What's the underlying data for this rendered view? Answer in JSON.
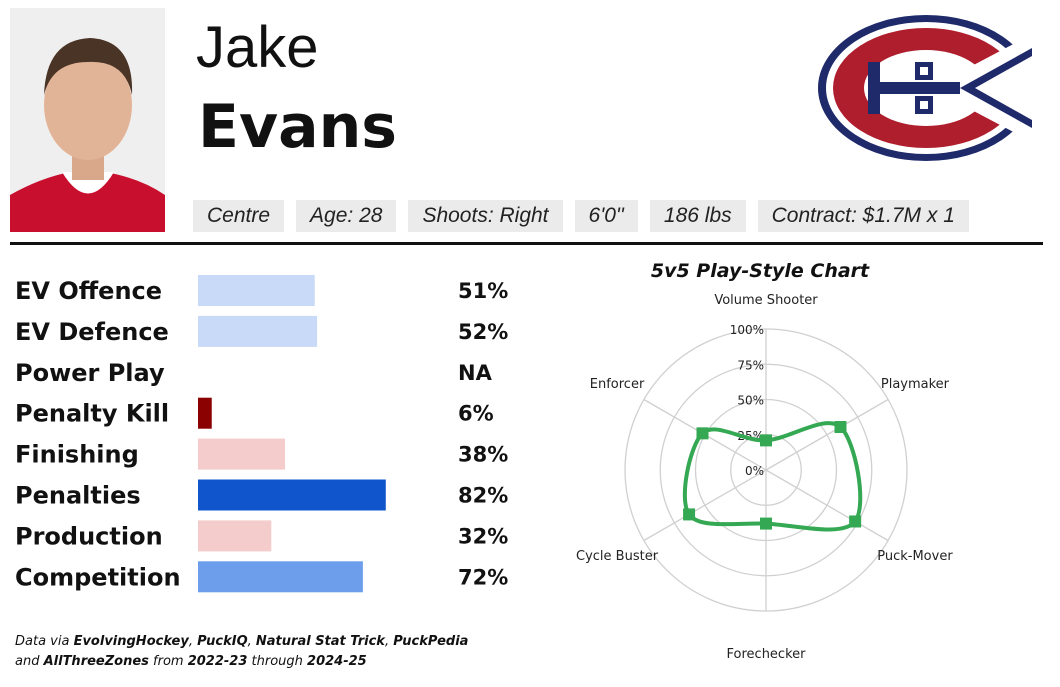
{
  "header": {
    "first_name": "Jake",
    "last_name": "Evans",
    "chips": [
      "Centre",
      "Age: 28",
      "Shoots: Right",
      "6'0''",
      "186 lbs",
      "Contract: $1.7M x 1"
    ]
  },
  "metrics": [
    {
      "name": "EV Offence",
      "value": 51,
      "label": "51%",
      "color": "#c9daf8"
    },
    {
      "name": "EV Defence",
      "value": 52,
      "label": "52%",
      "color": "#c9daf8"
    },
    {
      "name": "Power Play",
      "value": null,
      "label": "NA",
      "color": "#cccccc"
    },
    {
      "name": "Penalty Kill",
      "value": 6,
      "label": "6%",
      "color": "#8b0000"
    },
    {
      "name": "Finishing",
      "value": 38,
      "label": "38%",
      "color": "#f4cccc"
    },
    {
      "name": "Penalties",
      "value": 82,
      "label": "82%",
      "color": "#1155cc"
    },
    {
      "name": "Production",
      "value": 32,
      "label": "32%",
      "color": "#f4cccc"
    },
    {
      "name": "Competition",
      "value": 72,
      "label": "72%",
      "color": "#6d9eeb"
    }
  ],
  "chart_data": {
    "type": "radar",
    "title": "5v5 Play-Style Chart",
    "categories": [
      "Volume Shooter",
      "Playmaker",
      "Puck-Mover",
      "Forechecker",
      "Cycle Buster",
      "Enforcer"
    ],
    "series": [
      {
        "color": "#34a853",
        "values": [
          21,
          61,
          73,
          38,
          63,
          52
        ]
      }
    ],
    "ylim": [
      0,
      100
    ],
    "yticks": [
      {
        "value": 0,
        "label": "0%"
      },
      {
        "value": 25,
        "label": "25%"
      },
      {
        "value": 50,
        "label": "50%"
      },
      {
        "value": 75,
        "label": "75%"
      },
      {
        "value": 100,
        "label": "100%"
      }
    ],
    "grid": true
  },
  "footer": [
    [
      {
        "text": "Data via ",
        "bold": false
      },
      {
        "text": "EvolvingHockey",
        "bold": true
      },
      {
        "text": ", ",
        "bold": false
      },
      {
        "text": "PuckIQ",
        "bold": true
      },
      {
        "text": ", ",
        "bold": false
      },
      {
        "text": "Natural Stat Trick",
        "bold": true
      },
      {
        "text": ", ",
        "bold": false
      },
      {
        "text": "PuckPedia",
        "bold": true
      }
    ],
    [
      {
        "text": "and ",
        "bold": false
      },
      {
        "text": "AllThreeZones",
        "bold": true
      },
      {
        "text": " from ",
        "bold": false
      },
      {
        "text": "2022-23",
        "bold": true
      },
      {
        "text": " through ",
        "bold": false
      },
      {
        "text": "2024-25",
        "bold": true
      }
    ]
  ]
}
